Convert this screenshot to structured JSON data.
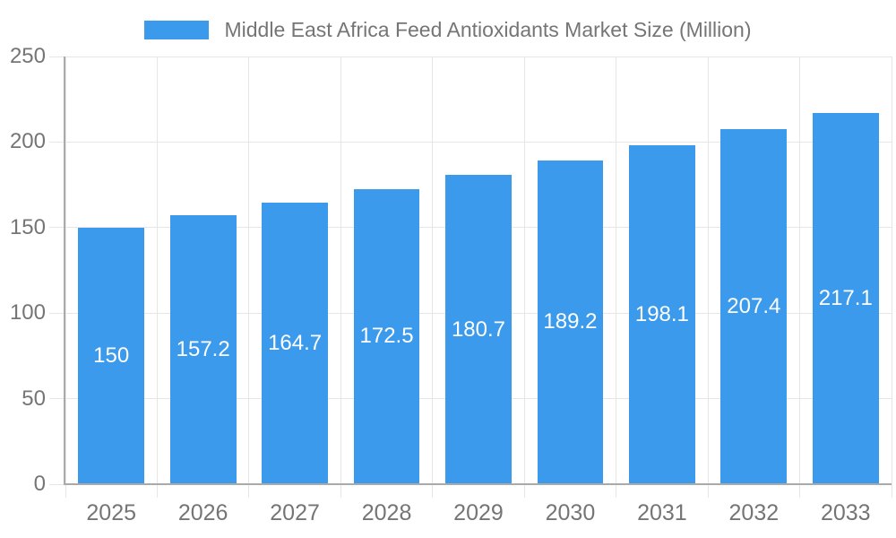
{
  "chart_data": {
    "type": "bar",
    "title": "Middle East Africa Feed Antioxidants Market Size (Million)",
    "categories": [
      "2025",
      "2026",
      "2027",
      "2028",
      "2029",
      "2030",
      "2031",
      "2032",
      "2033"
    ],
    "values": [
      150,
      157.2,
      164.7,
      172.5,
      180.7,
      189.2,
      198.1,
      207.4,
      217.1
    ],
    "value_labels": [
      "150",
      "157.2",
      "164.7",
      "172.5",
      "180.7",
      "189.2",
      "198.1",
      "207.4",
      "217.1"
    ],
    "series_name": "Middle East Africa Feed Antioxidants Market Size (Million)",
    "xlabel": "",
    "ylabel": "",
    "ylim": [
      0,
      250
    ],
    "yticks": [
      0,
      50,
      100,
      150,
      200,
      250
    ],
    "ytick_labels": [
      "0",
      "50",
      "100",
      "150",
      "200",
      "250"
    ],
    "grid": true,
    "legend_position": "top",
    "value_label_position": "inside-center",
    "colors": {
      "bar": "#3B9AEC",
      "bar_value_text": "#FFFFFF",
      "axis_text": "#757575",
      "grid_line": "#E6E6E6",
      "axis_line": "#AAAAAA",
      "background": "#FFFFFF"
    }
  }
}
